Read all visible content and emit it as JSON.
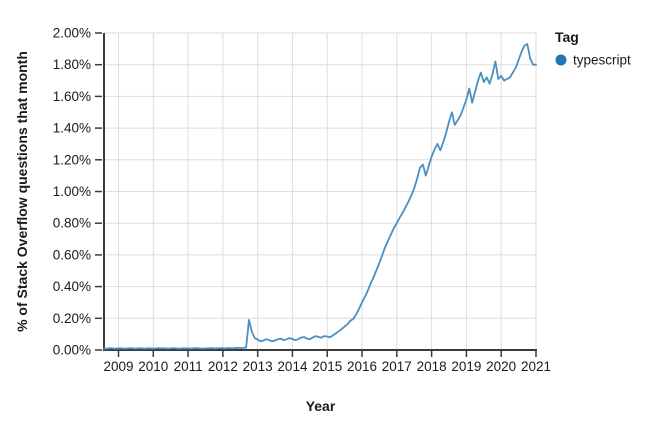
{
  "chart_data": {
    "type": "line",
    "title": "",
    "xlabel": "Year",
    "ylabel": "% of Stack Overflow questions that month",
    "grid": true,
    "legend": {
      "title": "Tag",
      "position": "right"
    },
    "colors": {
      "line": "#4a90c2",
      "marker": "#1f77b4",
      "grid": "#dedede",
      "axis": "#3b3b3b",
      "text": "#1a1a1a",
      "background": "#ffffff"
    },
    "x_axis": {
      "tick_values": [
        2009,
        2010,
        2011,
        2012,
        2013,
        2014,
        2015,
        2016,
        2017,
        2018,
        2019,
        2020,
        2021
      ],
      "tick_labels": [
        "2009",
        "2010",
        "2011",
        "2012",
        "2013",
        "2014",
        "2015",
        "2016",
        "2017",
        "2018",
        "2019",
        "2020",
        "2021"
      ],
      "min": 2008.583,
      "max": 2021.05
    },
    "y_axis": {
      "tick_values": [
        0,
        0.2,
        0.4,
        0.6,
        0.8,
        1.0,
        1.2,
        1.4,
        1.6,
        1.8,
        2.0
      ],
      "tick_labels": [
        "0.00%",
        "0.20%",
        "0.40%",
        "0.60%",
        "0.80%",
        "1.00%",
        "1.20%",
        "1.40%",
        "1.60%",
        "1.80%",
        "2.00%"
      ],
      "min": 0,
      "max": 2.0
    },
    "series": [
      {
        "name": "typescript",
        "color": "#1f77b4",
        "line_color": "#4a90c2",
        "x_start_year": 2008,
        "x_start_month": 8,
        "x_step": "1 month",
        "values": [
          0.01,
          0.008,
          0.012,
          0.01,
          0.009,
          0.01,
          0.011,
          0.009,
          0.01,
          0.012,
          0.01,
          0.009,
          0.011,
          0.01,
          0.008,
          0.01,
          0.011,
          0.009,
          0.01,
          0.012,
          0.01,
          0.011,
          0.009,
          0.01,
          0.012,
          0.01,
          0.009,
          0.011,
          0.01,
          0.01,
          0.009,
          0.011,
          0.012,
          0.01,
          0.009,
          0.01,
          0.011,
          0.012,
          0.01,
          0.011,
          0.012,
          0.012,
          0.01,
          0.013,
          0.011,
          0.012,
          0.014,
          0.012,
          0.013,
          0.015,
          0.19,
          0.115,
          0.075,
          0.065,
          0.055,
          0.06,
          0.068,
          0.062,
          0.055,
          0.06,
          0.068,
          0.072,
          0.062,
          0.068,
          0.075,
          0.07,
          0.062,
          0.068,
          0.078,
          0.082,
          0.072,
          0.068,
          0.078,
          0.088,
          0.082,
          0.078,
          0.088,
          0.085,
          0.08,
          0.092,
          0.105,
          0.118,
          0.132,
          0.148,
          0.163,
          0.185,
          0.196,
          0.225,
          0.26,
          0.3,
          0.335,
          0.375,
          0.42,
          0.46,
          0.505,
          0.55,
          0.6,
          0.65,
          0.69,
          0.73,
          0.77,
          0.8,
          0.835,
          0.865,
          0.9,
          0.935,
          0.975,
          1.02,
          1.08,
          1.15,
          1.17,
          1.1,
          1.16,
          1.22,
          1.265,
          1.3,
          1.26,
          1.31,
          1.37,
          1.44,
          1.5,
          1.42,
          1.45,
          1.48,
          1.53,
          1.58,
          1.65,
          1.56,
          1.63,
          1.7,
          1.75,
          1.69,
          1.72,
          1.68,
          1.74,
          1.82,
          1.71,
          1.73,
          1.7,
          1.71,
          1.72,
          1.75,
          1.78,
          1.83,
          1.88,
          1.92,
          1.93,
          1.84,
          1.8,
          1.8
        ]
      }
    ]
  }
}
